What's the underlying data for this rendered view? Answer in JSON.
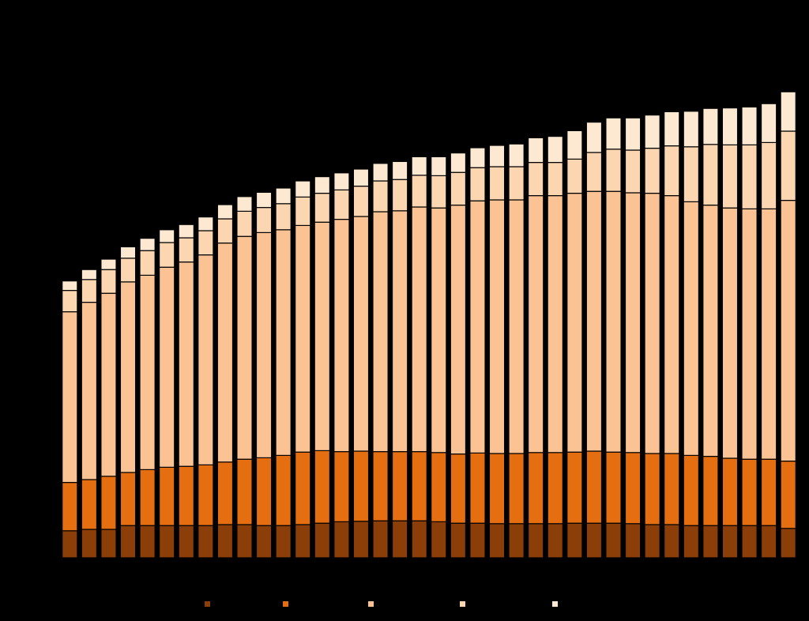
{
  "chart_data": {
    "type": "bar",
    "stacked": true,
    "title": "",
    "xlabel": "",
    "ylabel": "",
    "ylim": [
      0,
      100
    ],
    "grid": false,
    "legend_position": "bottom",
    "categories": [
      "",
      "",
      "",
      "",
      "",
      "",
      "",
      "",
      "",
      "",
      "",
      "",
      "",
      "",
      "",
      "",
      "",
      "",
      "",
      "",
      "",
      "",
      "",
      "",
      "",
      "",
      "",
      "",
      "",
      "",
      "",
      "",
      "",
      "",
      "",
      "",
      "",
      ""
    ],
    "series": [
      {
        "color": "#8b3e07",
        "values": [
          5.7,
          6.0,
          6.0,
          6.8,
          6.8,
          6.8,
          6.8,
          6.8,
          7.0,
          7.0,
          6.8,
          6.8,
          7.0,
          7.3,
          7.6,
          7.7,
          7.8,
          7.8,
          7.8,
          7.6,
          7.3,
          7.3,
          7.2,
          7.2,
          7.2,
          7.2,
          7.3,
          7.3,
          7.3,
          7.2,
          7.0,
          7.0,
          6.8,
          6.8,
          6.8,
          6.8,
          6.8,
          6.2
        ]
      },
      {
        "color": "#e56e10",
        "values": [
          10.2,
          10.5,
          11.2,
          11.2,
          11.8,
          12.3,
          12.5,
          12.8,
          13.2,
          13.8,
          14.3,
          14.8,
          15.3,
          15.3,
          14.8,
          14.8,
          14.6,
          14.6,
          14.6,
          14.6,
          14.6,
          14.8,
          14.8,
          14.8,
          15.0,
          15.0,
          15.0,
          15.2,
          15.0,
          15.0,
          15.0,
          15.0,
          14.8,
          14.6,
          14.2,
          14.0,
          14.0,
          14.2
        ]
      },
      {
        "color": "#fbc393",
        "values": [
          36.0,
          37.4,
          38.6,
          40.2,
          41.0,
          42.2,
          43.1,
          44.3,
          46.2,
          47.0,
          47.5,
          47.6,
          47.8,
          48.2,
          49.0,
          49.5,
          50.6,
          50.8,
          51.6,
          51.6,
          52.5,
          53.2,
          53.5,
          53.5,
          54.2,
          54.2,
          54.6,
          54.8,
          55.0,
          54.8,
          54.9,
          54.4,
          53.5,
          53.0,
          52.8,
          52.8,
          52.8,
          55.0
        ]
      },
      {
        "color": "#fcd5b1",
        "values": [
          4.5,
          4.8,
          5.0,
          5.0,
          5.2,
          5.2,
          5.1,
          5.1,
          5.1,
          5.3,
          5.3,
          5.5,
          6.0,
          6.1,
          6.2,
          6.4,
          6.5,
          6.6,
          6.7,
          6.8,
          6.9,
          7.0,
          7.0,
          7.0,
          7.0,
          7.0,
          7.2,
          8.2,
          8.9,
          9.0,
          9.5,
          10.5,
          11.6,
          12.8,
          13.3,
          13.5,
          14.0,
          14.6
        ]
      },
      {
        "color": "#fde8d2",
        "values": [
          2.0,
          2.1,
          2.2,
          2.4,
          2.6,
          2.7,
          2.8,
          2.9,
          3.0,
          3.1,
          3.2,
          3.3,
          3.4,
          3.5,
          3.6,
          3.6,
          3.7,
          3.8,
          3.9,
          4.0,
          4.1,
          4.2,
          4.5,
          4.8,
          5.2,
          5.5,
          6.0,
          6.4,
          6.6,
          6.8,
          7.0,
          7.2,
          7.5,
          7.6,
          7.8,
          8.0,
          8.2,
          8.3
        ]
      }
    ]
  }
}
